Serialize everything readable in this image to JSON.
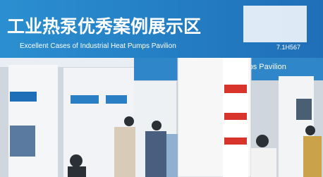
{
  "banner": {
    "title": "工业热泵优秀案例展示区",
    "subtitle": "Excellent Cases of Industrial Heat Pumps Pavilion",
    "booth": "7.1H567"
  },
  "background_sign": {
    "text": "Pumps Pavilion"
  }
}
